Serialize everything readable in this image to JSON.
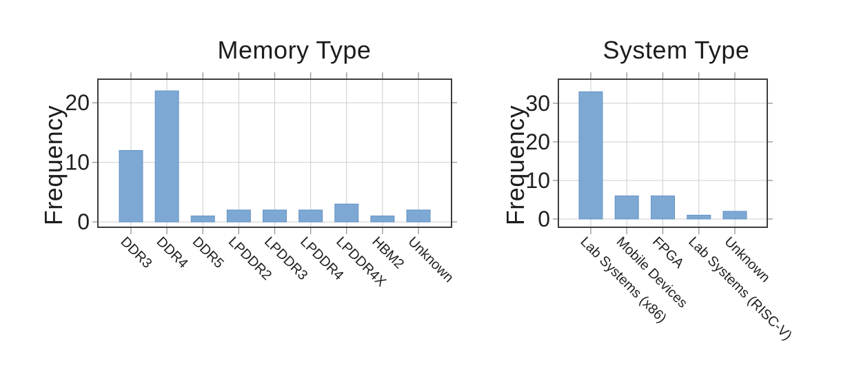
{
  "figure": {
    "background_color": "#ffffff",
    "colors": {
      "bar_fill": "#7ea8d4",
      "bar_edge": "#6392c4",
      "grid_line": "#cdcdcd",
      "spine": "#3c3c3c",
      "tick_mark": "#999999",
      "text": "#1f1f1f"
    }
  },
  "chart_data": [
    {
      "type": "bar",
      "title": "Memory Type",
      "xlabel": "",
      "ylabel": "Frequency",
      "categories": [
        "DDR3",
        "DDR4",
        "DDR5",
        "LPDDR2",
        "LPDDR3",
        "LPDDR4",
        "LPDDR4X",
        "HBM2",
        "Unknown"
      ],
      "values": [
        12,
        22,
        1,
        2,
        2,
        2,
        3,
        1,
        2
      ],
      "yticks": [
        0,
        10,
        20
      ],
      "ylim": [
        -0.9,
        23.96
      ],
      "grid": true,
      "x_tick_label_rotation": 45
    },
    {
      "type": "bar",
      "title": "System Type",
      "xlabel": "",
      "ylabel": "Frequency",
      "categories": [
        "Lab Systems (x86)",
        "Mobile Devices",
        "FPGA",
        "Lab Systems (RISC-V)",
        "Unknown"
      ],
      "values": [
        33,
        6,
        6,
        1,
        2
      ],
      "yticks": [
        0,
        10,
        20,
        30
      ],
      "ylim": [
        -2.14,
        36.25
      ],
      "grid": true,
      "x_tick_label_rotation": 45
    }
  ]
}
